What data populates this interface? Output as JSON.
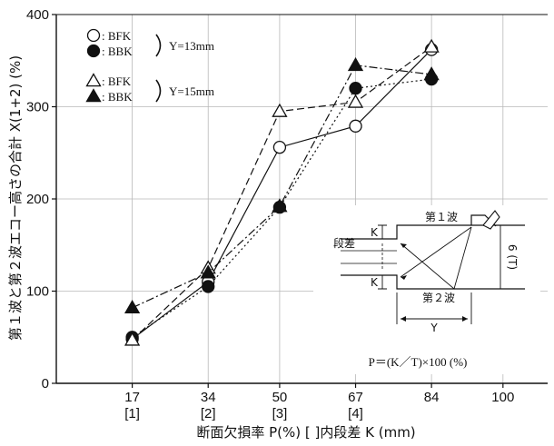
{
  "chart_data": {
    "type": "line",
    "xlabel": "断面欠損率 P(%)  [ ]内段差 K (mm)",
    "ylabel": "第１波と第２波エコー高さの合計 X(1+2) (%)",
    "xlim": [
      0,
      110
    ],
    "ylim": [
      0,
      400
    ],
    "x_ticks": [
      {
        "value": 17,
        "label": "17",
        "sub": "[1]"
      },
      {
        "value": 34,
        "label": "34",
        "sub": "[2]"
      },
      {
        "value": 50,
        "label": "50",
        "sub": "[3]"
      },
      {
        "value": 67,
        "label": "67",
        "sub": "[4]"
      },
      {
        "value": 84,
        "label": "84",
        "sub": ""
      },
      {
        "value": 100,
        "label": "100",
        "sub": ""
      }
    ],
    "y_ticks": [
      0,
      100,
      200,
      300,
      400
    ],
    "grid": true,
    "legend_position": "top-left",
    "legend_groups": [
      {
        "bracket_label": "Y=13mm"
      },
      {
        "bracket_label": "Y=15mm"
      }
    ],
    "series": [
      {
        "name": ": BFK",
        "marker": "circle-open",
        "line": "solid",
        "x": [
          17,
          34,
          50,
          67,
          84
        ],
        "y": [
          48,
          110,
          256,
          279,
          362
        ]
      },
      {
        "name": ": BBK",
        "marker": "circle-filled",
        "line": "dotted",
        "x": [
          17,
          34,
          50,
          67,
          84
        ],
        "y": [
          50,
          105,
          191,
          320,
          330
        ]
      },
      {
        "name": ": BFK",
        "marker": "triangle-open",
        "line": "dashed",
        "x": [
          17,
          34,
          50,
          67,
          84
        ],
        "y": [
          47,
          125,
          295,
          305,
          365
        ]
      },
      {
        "name": ": BBK",
        "marker": "triangle-filled",
        "line": "dashdot",
        "x": [
          17,
          34,
          50,
          67,
          84
        ],
        "y": [
          82,
          120,
          192,
          345,
          335
        ]
      }
    ],
    "inset": {
      "step_label": "段差",
      "first_wave_label": "第１波",
      "second_wave_label": "第２波",
      "k_label": "K",
      "t_label": "6\n(T)",
      "y_label": "Y",
      "formula": "P＝(K／T)×100 (%)"
    }
  }
}
